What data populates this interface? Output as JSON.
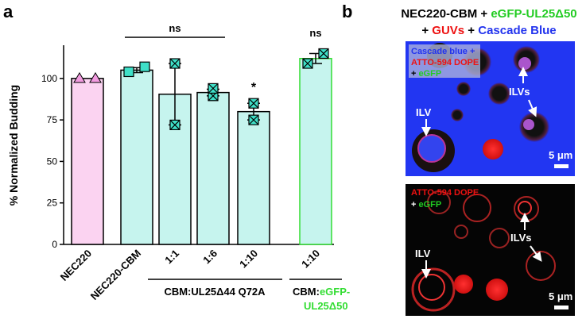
{
  "chart_data": {
    "type": "bar",
    "panel_label": "a",
    "ylabel": "% Normalized Budding",
    "categories": [
      "NEC220",
      "NEC220-CBM",
      "1:1",
      "1:6",
      "1:10",
      "1:10"
    ],
    "values": [
      100,
      105,
      90.5,
      91.5,
      80,
      112
    ],
    "errors": [
      null,
      1.5,
      18.5,
      2,
      5,
      3
    ],
    "points": [
      [
        100,
        100
      ],
      [
        104,
        107
      ],
      [
        109,
        72
      ],
      [
        89.5,
        94
      ],
      [
        85,
        75
      ],
      [
        109,
        115
      ]
    ],
    "colors": [
      "#fbd3f1",
      "#c6f4ee",
      "#c6f4ee",
      "#c6f4ee",
      "#c6f4ee",
      "#c6f4ee"
    ],
    "edge_colors": [
      "#000000",
      "#000000",
      "#000000",
      "#000000",
      "#000000",
      "#33dd33"
    ],
    "markers": [
      "triangle",
      "square",
      "x-square",
      "x-square",
      "x-square",
      "x-square"
    ],
    "marker_colors": [
      "#f29be0",
      "#3fe0c8",
      "#3fe0c8",
      "#3fe0c8",
      "#3fe0c8",
      "#3fe0c8"
    ],
    "ylim": [
      0,
      120
    ],
    "yticks": [
      0,
      25,
      50,
      75,
      100
    ],
    "annotations": [
      "ns",
      "*",
      "ns"
    ],
    "group_labels": [
      "CBM:UL25Δ44 Q72A",
      [
        "CBM:",
        "eGFP-",
        "UL25Δ50"
      ]
    ]
  },
  "panel_b": {
    "label": "b",
    "title": [
      [
        "NEC220-CBM",
        " + ",
        "eGFP-UL25Δ50"
      ],
      [
        "+ ",
        "GUVs",
        " + ",
        "Cascade Blue"
      ]
    ],
    "image_1": {
      "legend": [
        "Cascade blue +",
        "ATTO-594 DOPE",
        "+ ",
        "eGFP"
      ],
      "ilv": "ILV",
      "ilvs": "ILVs",
      "scale": "5 μm"
    },
    "image_2": {
      "legend": [
        "ATTO-594 DOPE",
        "+ ",
        "eGFP"
      ],
      "ilv": "ILV",
      "ilvs": "ILVs",
      "scale": "5 μm"
    }
  }
}
